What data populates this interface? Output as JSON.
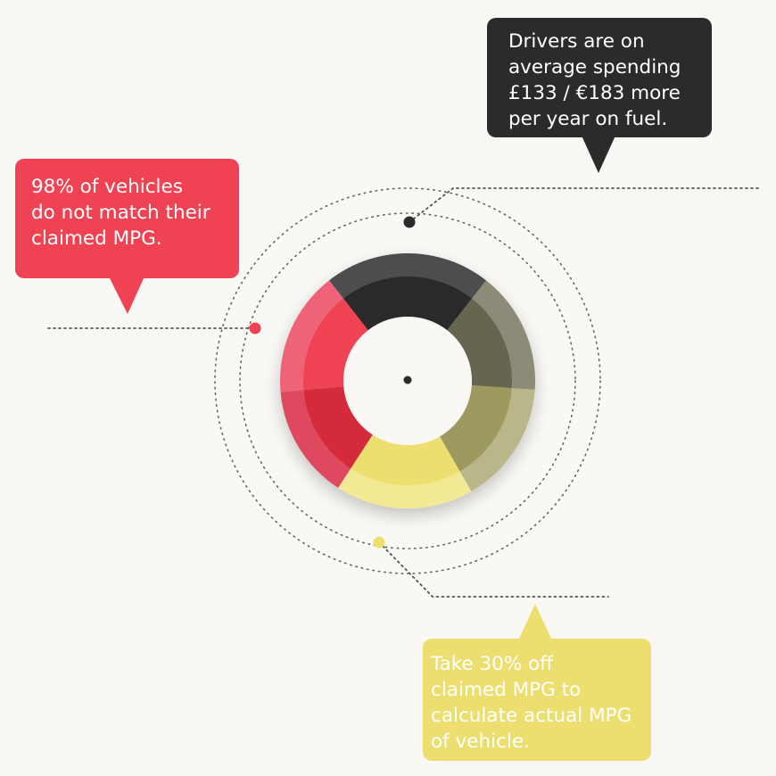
{
  "colors": {
    "background": "#f9f8f5",
    "dark": "#2b2b2b",
    "red": "#ef4253",
    "yellow": "#ecdf70",
    "olive": "#8c8b78",
    "dot_line": "#555555"
  },
  "callouts": {
    "fuel_spend": {
      "text": "Drivers are on\naverage spending\n£133 / €183 more\nper year on fuel."
    },
    "mpg_mismatch": {
      "text": "98% of vehicles\ndo not match their\nclaimed MPG."
    },
    "actual_mpg": {
      "text": "Take 30% off\nclaimed MPG to\ncalculate actual MPG\nof vehicle."
    }
  }
}
